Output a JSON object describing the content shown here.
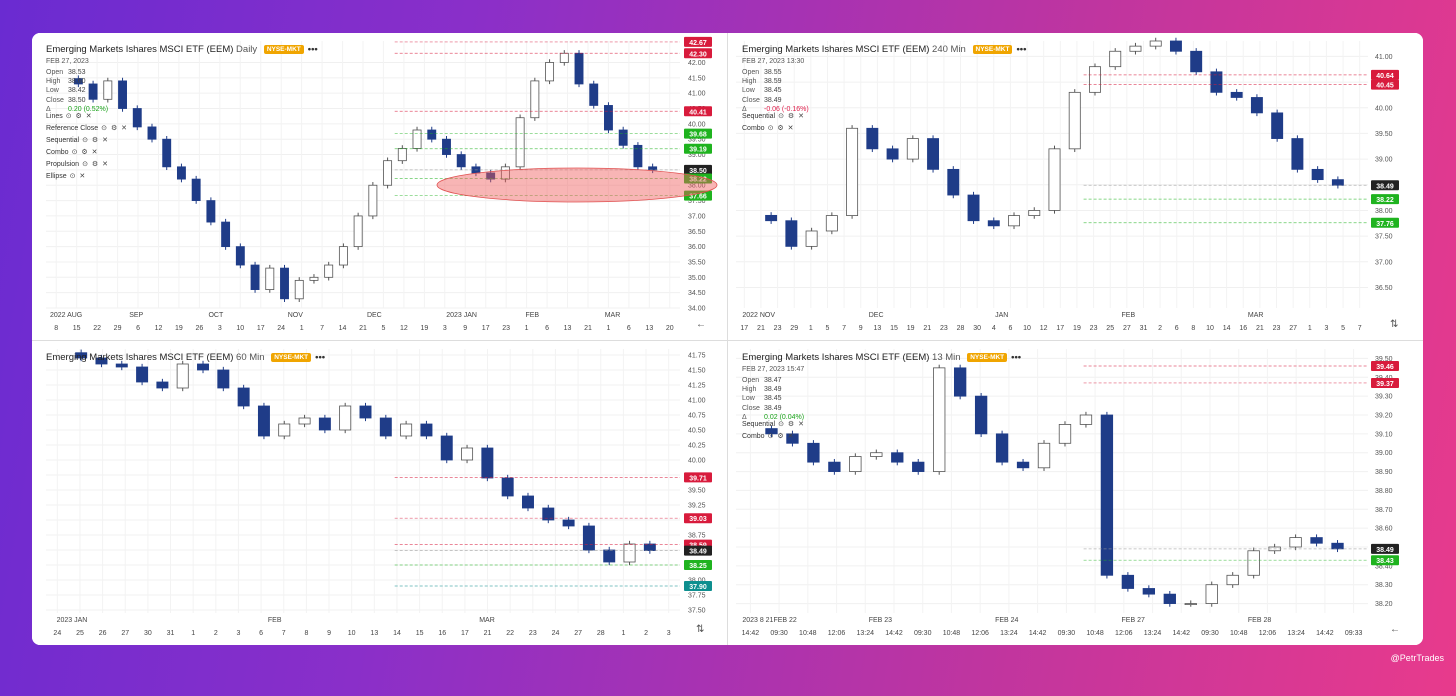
{
  "watermark": "@PetrTrades",
  "panels": [
    {
      "id": "p1",
      "title": "Emerging Markets Ishares MSCI ETF (EEM)",
      "timeframe": "Daily",
      "exchange": "NYSE-MKT",
      "date": "FEB 27, 2023",
      "ohlc": {
        "open": "38.53",
        "high": "38.60",
        "low": "38.42",
        "close": "38.50",
        "change": "0.20 (0.52%)"
      },
      "indicators": [
        "Lines",
        "Reference Close",
        "Sequential",
        "Combo",
        "Propulsion",
        "Ellipse"
      ],
      "y_ticks": [
        "42.00",
        "41.50",
        "41.00",
        "40.50",
        "40.00",
        "39.50",
        "39.00",
        "38.50",
        "38.00",
        "37.50",
        "37.00",
        "36.50",
        "36.00",
        "35.50",
        "35.00",
        "34.50",
        "34.00"
      ],
      "price_tags": [
        {
          "v": "42.67",
          "c": "#d81b3c"
        },
        {
          "v": "42.30",
          "c": "#d81b3c"
        },
        {
          "v": "40.41",
          "c": "#d81b3c"
        },
        {
          "v": "39.68",
          "c": "#1fb31f"
        },
        {
          "v": "39.19",
          "c": "#1fb31f"
        },
        {
          "v": "38.50",
          "c": "#222"
        },
        {
          "v": "38.22",
          "c": "#1fb31f"
        },
        {
          "v": "37.66",
          "c": "#1fb31f"
        }
      ],
      "months": [
        "2022 AUG",
        "SEP",
        "OCT",
        "NOV",
        "DEC",
        "2023 JAN",
        "FEB",
        "MAR"
      ],
      "x_ticks": [
        "8",
        "15",
        "22",
        "29",
        "6",
        "12",
        "19",
        "26",
        "3",
        "10",
        "17",
        "24",
        "1",
        "7",
        "14",
        "21",
        "5",
        "12",
        "19",
        "3",
        "9",
        "17",
        "23",
        "1",
        "6",
        "13",
        "21",
        "1",
        "6",
        "13",
        "20"
      ],
      "chart_data": {
        "type": "candlestick",
        "title": "Emerging Markets Ishares MSCI ETF (EEM) Daily",
        "ylim": [
          34,
          42.7
        ],
        "series": [
          {
            "name": "EEM Daily",
            "close": [
              41.3,
              40.8,
              41.4,
              40.5,
              39.9,
              39.5,
              38.6,
              38.2,
              37.5,
              36.8,
              36.0,
              35.4,
              34.6,
              35.3,
              34.3,
              34.9,
              35.0,
              35.4,
              36.0,
              37.0,
              38.0,
              38.8,
              39.2,
              39.8,
              39.5,
              39.0,
              38.6,
              38.4,
              38.2,
              38.6,
              40.2,
              41.4,
              42.0,
              42.3,
              41.3,
              40.6,
              39.8,
              39.3,
              38.6,
              38.5
            ]
          }
        ]
      }
    },
    {
      "id": "p2",
      "title": "Emerging Markets Ishares MSCI ETF (EEM)",
      "timeframe": "240 Min",
      "exchange": "NYSE-MKT",
      "date": "FEB 27, 2023  13:30",
      "ohlc": {
        "open": "38.55",
        "high": "38.59",
        "low": "38.45",
        "close": "38.49",
        "change": "-0.06 (-0.16%)"
      },
      "indicators": [
        "Sequential",
        "Combo"
      ],
      "y_ticks": [
        "41.00",
        "40.50",
        "40.00",
        "39.50",
        "39.00",
        "38.50",
        "38.00",
        "37.50",
        "37.00",
        "36.50"
      ],
      "price_tags": [
        {
          "v": "40.64",
          "c": "#d81b3c"
        },
        {
          "v": "40.45",
          "c": "#d81b3c"
        },
        {
          "v": "38.49",
          "c": "#222"
        },
        {
          "v": "38.22",
          "c": "#1fb31f"
        },
        {
          "v": "37.76",
          "c": "#1fb31f"
        }
      ],
      "months": [
        "2022 NOV",
        "DEC",
        "JAN",
        "FEB",
        "MAR"
      ],
      "x_ticks": [
        "17",
        "21",
        "23",
        "29",
        "1",
        "5",
        "7",
        "9",
        "13",
        "15",
        "19",
        "21",
        "23",
        "28",
        "30",
        "4",
        "6",
        "10",
        "12",
        "17",
        "19",
        "23",
        "25",
        "27",
        "31",
        "2",
        "6",
        "8",
        "10",
        "14",
        "16",
        "21",
        "23",
        "27",
        "1",
        "3",
        "5",
        "7"
      ],
      "chart_data": {
        "type": "candlestick",
        "title": "Emerging Markets Ishares MSCI ETF (EEM) 240 Min",
        "ylim": [
          36.1,
          41.3
        ],
        "series": [
          {
            "name": "EEM 240 Min",
            "close": [
              37.8,
              37.3,
              37.6,
              37.9,
              39.6,
              39.2,
              39.0,
              39.4,
              38.8,
              38.3,
              37.8,
              37.7,
              37.9,
              38.0,
              39.2,
              40.3,
              40.8,
              41.1,
              41.2,
              41.3,
              41.1,
              40.7,
              40.3,
              40.2,
              39.9,
              39.4,
              38.8,
              38.6,
              38.49
            ]
          }
        ]
      }
    },
    {
      "id": "p3",
      "title": "Emerging Markets Ishares MSCI ETF (EEM)",
      "timeframe": "60 Min",
      "exchange": "NYSE-MKT",
      "y_ticks": [
        "41.75",
        "41.50",
        "41.25",
        "41.00",
        "40.75",
        "40.50",
        "40.25",
        "40.00",
        "39.75",
        "39.50",
        "39.25",
        "39.00",
        "38.75",
        "38.50",
        "38.25",
        "38.00",
        "37.75",
        "37.50"
      ],
      "price_tags": [
        {
          "v": "39.71",
          "c": "#d81b3c"
        },
        {
          "v": "39.03",
          "c": "#d81b3c"
        },
        {
          "v": "38.59",
          "c": "#d81b3c"
        },
        {
          "v": "38.49",
          "c": "#222"
        },
        {
          "v": "38.25",
          "c": "#1fb31f"
        },
        {
          "v": "37.90",
          "c": "#0e8f8f"
        }
      ],
      "months": [
        "2023 JAN",
        "FEB",
        "MAR"
      ],
      "x_ticks": [
        "24",
        "25",
        "26",
        "27",
        "30",
        "31",
        "1",
        "2",
        "3",
        "6",
        "7",
        "8",
        "9",
        "10",
        "13",
        "14",
        "15",
        "16",
        "17",
        "21",
        "22",
        "23",
        "24",
        "27",
        "28",
        "1",
        "2",
        "3"
      ],
      "chart_data": {
        "type": "candlestick",
        "title": "Emerging Markets Ishares MSCI ETF (EEM) 60 Min",
        "ylim": [
          37.45,
          41.85
        ],
        "series": [
          {
            "name": "EEM 60 Min",
            "close": [
              41.7,
              41.6,
              41.55,
              41.3,
              41.2,
              41.6,
              41.5,
              41.2,
              40.9,
              40.4,
              40.6,
              40.7,
              40.5,
              40.9,
              40.7,
              40.4,
              40.6,
              40.4,
              40.0,
              40.2,
              39.7,
              39.4,
              39.2,
              39.0,
              38.9,
              38.5,
              38.3,
              38.6,
              38.49
            ]
          }
        ]
      }
    },
    {
      "id": "p4",
      "title": "Emerging Markets Ishares MSCI ETF (EEM)",
      "timeframe": "13 Min",
      "exchange": "NYSE-MKT",
      "date": "FEB 27, 2023  15:47",
      "ohlc": {
        "open": "38.47",
        "high": "38.49",
        "low": "38.45",
        "close": "38.49",
        "change": "0.02 (0.04%)"
      },
      "indicators": [
        "Sequential",
        "Combo"
      ],
      "y_ticks": [
        "39.50",
        "39.40",
        "39.30",
        "39.20",
        "39.10",
        "39.00",
        "38.90",
        "38.80",
        "38.70",
        "38.60",
        "38.50",
        "38.40",
        "38.30",
        "38.20"
      ],
      "price_tags": [
        {
          "v": "39.46",
          "c": "#d81b3c"
        },
        {
          "v": "39.37",
          "c": "#d81b3c"
        },
        {
          "v": "38.49",
          "c": "#222"
        },
        {
          "v": "38.43",
          "c": "#1fb31f"
        }
      ],
      "months": [
        "2023 8 21FEB 22",
        "FEB 23",
        "FEB 24",
        "FEB 27",
        "FEB 28"
      ],
      "x_ticks": [
        "14:42",
        "09:30",
        "10:48",
        "12:06",
        "13:24",
        "14:42",
        "09:30",
        "10:48",
        "12:06",
        "13:24",
        "14:42",
        "09:30",
        "10:48",
        "12:06",
        "13:24",
        "14:42",
        "09:30",
        "10:48",
        "12:06",
        "13:24",
        "14:42",
        "09:33"
      ],
      "chart_data": {
        "type": "candlestick",
        "title": "Emerging Markets Ishares MSCI ETF (EEM) 13 Min",
        "ylim": [
          38.15,
          39.55
        ],
        "series": [
          {
            "name": "EEM 13 Min",
            "close": [
              39.1,
              39.05,
              38.95,
              38.9,
              38.98,
              39.0,
              38.95,
              38.9,
              39.45,
              39.3,
              39.1,
              38.95,
              38.92,
              39.05,
              39.15,
              39.2,
              38.35,
              38.28,
              38.25,
              38.2,
              38.2,
              38.3,
              38.35,
              38.48,
              38.5,
              38.55,
              38.52,
              38.49
            ]
          }
        ]
      }
    }
  ]
}
